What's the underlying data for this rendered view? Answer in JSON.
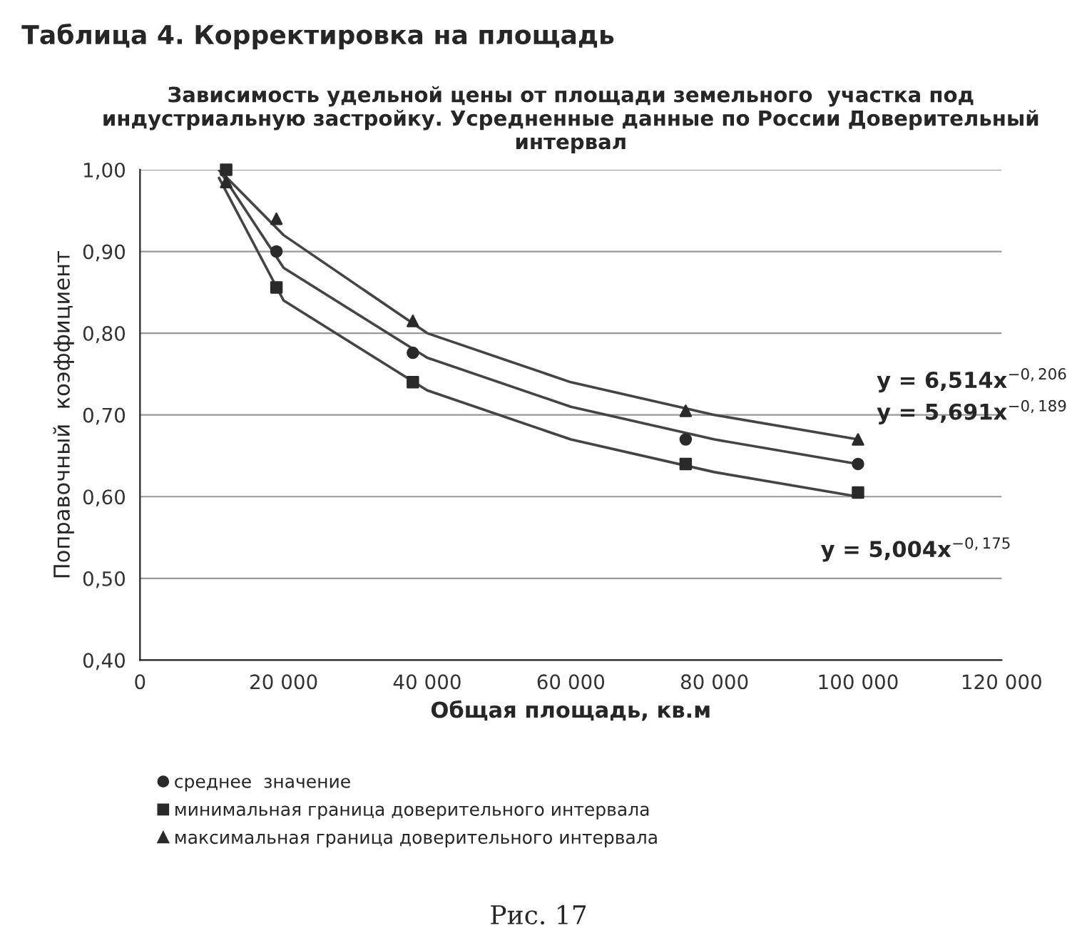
{
  "chart_data": {
    "type": "scatter",
    "title": "Зависимость удельной цены от площади земельного  участка под индустриальную застройку. Усредненные данные по России Доверительный интервал",
    "xlabel": "Общая площадь, кв.м",
    "ylabel": "Поправочный  коэффициент",
    "series": [
      {
        "name": "среднее  значение",
        "color": "#2a2a2a",
        "marker": "circle",
        "x": [
          19000,
          38000,
          76000,
          100000
        ],
        "values": [
          0.9,
          0.776,
          0.67,
          0.64
        ]
      },
      {
        "name": "минимальная граница доверительного интервала",
        "color": "#2a2a2a",
        "marker": "square",
        "x": [
          12000,
          19000,
          38000,
          76000,
          100000
        ],
        "values": [
          1.0,
          0.856,
          0.74,
          0.64,
          0.605
        ]
      },
      {
        "name": "максимальная граница доверительного интервала",
        "color": "#2a2a2a",
        "marker": "triangle",
        "x": [
          12000,
          19000,
          38000,
          76000,
          100000
        ],
        "values": [
          0.985,
          0.94,
          0.815,
          0.705,
          0.67
        ]
      },
      {
        "type": "line",
        "color": "#444444",
        "marker": "none",
        "x": [
          11000,
          20000,
          40000,
          60000,
          80000,
          100000
        ],
        "values": [
          1.0,
          0.92,
          0.8,
          0.74,
          0.7,
          0.67
        ]
      },
      {
        "type": "line",
        "color": "#444444",
        "marker": "none",
        "x": [
          11000,
          20000,
          40000,
          60000,
          80000,
          100000
        ],
        "values": [
          1.0,
          0.88,
          0.77,
          0.71,
          0.67,
          0.64
        ]
      },
      {
        "type": "line",
        "color": "#444444",
        "marker": "none",
        "x": [
          11000,
          20000,
          40000,
          60000,
          80000,
          100000
        ],
        "values": [
          0.99,
          0.84,
          0.73,
          0.67,
          0.63,
          0.6
        ]
      }
    ],
    "xlim": [
      0,
      120000
    ],
    "xticks": [
      0,
      {
        "value": 20000,
        "label": "20 000"
      },
      {
        "value": 40000,
        "label": "40 000"
      },
      {
        "value": 60000,
        "label": "60 000"
      },
      {
        "value": 80000,
        "label": "80 000"
      },
      {
        "value": 100000,
        "label": "100 000"
      },
      {
        "value": 120000,
        "label": "120 000"
      }
    ],
    "ylim": [
      0.4,
      1.0
    ],
    "yticks": [
      {
        "value": 0.4,
        "label": "0,40"
      },
      {
        "value": 0.5,
        "label": "0,50"
      },
      {
        "value": 0.6,
        "label": "0,60"
      },
      {
        "value": 0.7,
        "label": "0,70"
      },
      {
        "value": 0.8,
        "label": "0,80"
      },
      {
        "value": 0.9,
        "label": "0,90"
      },
      {
        "value": 1.0,
        "label": "1,00"
      }
    ],
    "grid": "y",
    "legend": "bottom left",
    "annotations": [
      "y = 6,514x$^{−0,206}$",
      "y = 5,691x$^{−0,189}$",
      "y = 5,004x$^{−0,175}$",
      "Таблица 4. Корректировка на площадь",
      "Рис. 17"
    ]
  }
}
